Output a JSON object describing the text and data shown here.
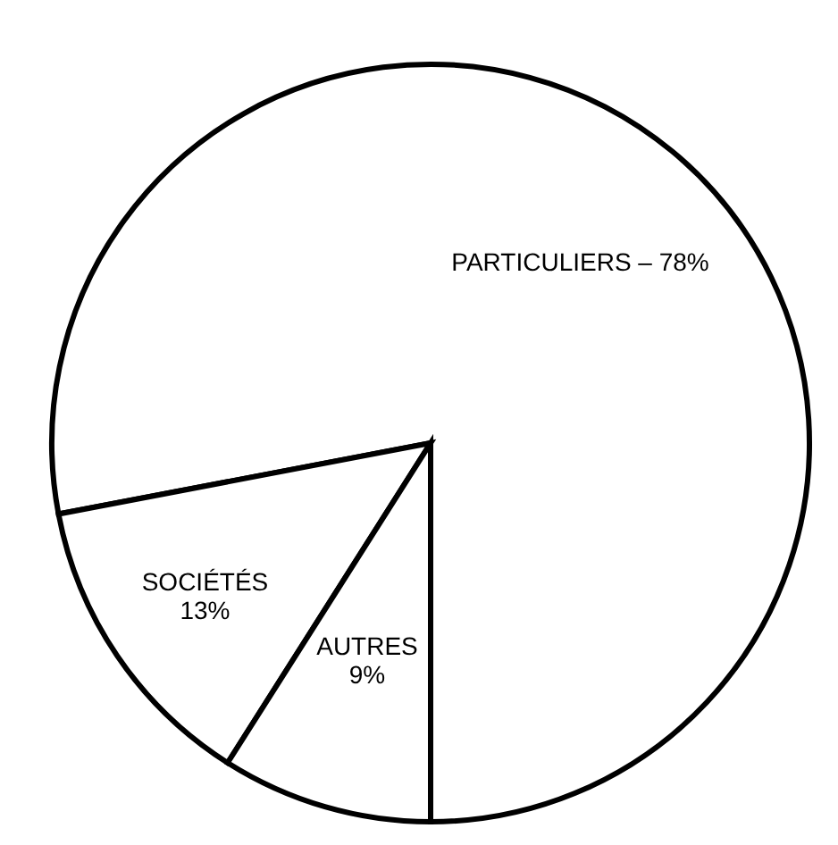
{
  "chart_data": {
    "type": "pie",
    "categories": [
      "PARTICULIERS –",
      "SOCIÉTÉS",
      "AUTRES"
    ],
    "values": [
      78,
      13,
      9
    ],
    "colors": [
      "#ffffff",
      "#ffffff",
      "#ffffff"
    ],
    "value_labels": [
      "78%",
      "13%",
      "9%"
    ]
  }
}
